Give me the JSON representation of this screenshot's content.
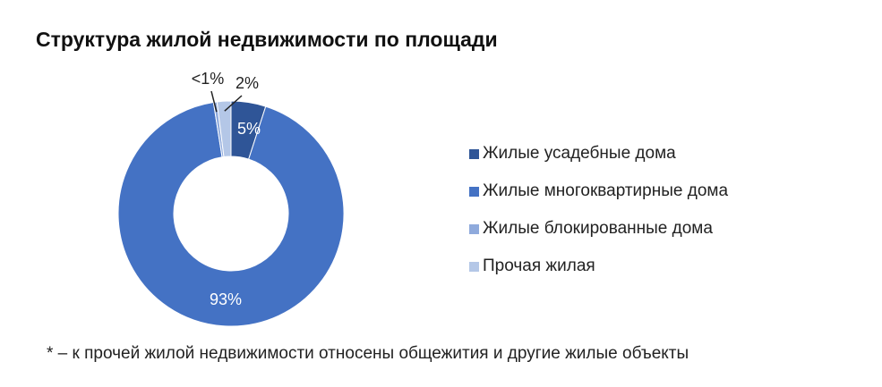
{
  "title": "Структура жилой недвижимости по площади",
  "footnote": "* – к прочей жилой недвижимости относены общежития и другие жилые объекты",
  "chart_data": {
    "type": "pie",
    "variant": "donut",
    "title": "Структура жилой недвижимости по площади",
    "legend_position": "right",
    "series": [
      {
        "name": "Жилые усадебные дома",
        "value": 5,
        "label": "5%",
        "color": "#2f5597",
        "label_placement": "inside"
      },
      {
        "name": "Жилые многоквартирные дома",
        "value": 93,
        "label": "93%",
        "color": "#4472c4",
        "label_placement": "inside"
      },
      {
        "name": "Жилые блокированные дома",
        "value": 0.5,
        "label": "<1%",
        "color": "#8faadc",
        "label_placement": "outside"
      },
      {
        "name": "Прочая жилая",
        "value": 2,
        "label": "2%",
        "color": "#b4c7e7",
        "label_placement": "outside"
      }
    ]
  }
}
